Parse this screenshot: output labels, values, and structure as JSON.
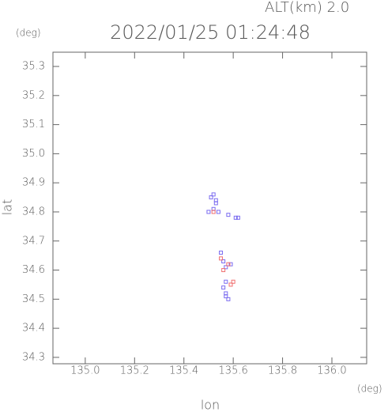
{
  "chart_data": {
    "type": "scatter",
    "title": "2022/01/25 01:24:48",
    "subtitle": "ALT(km) 2.0",
    "y_unit": "(deg)",
    "x_unit": "(deg)",
    "x_label": "lon",
    "y_label": "lat",
    "xlim": [
      134.869,
      136.141
    ],
    "ylim": [
      34.278,
      35.349
    ],
    "xticks": [
      {
        "value": 135,
        "label": "135.0"
      },
      135.2,
      135.4,
      135.6,
      135.8,
      {
        "value": 136,
        "label": "136.0"
      }
    ],
    "yticks": [
      34.3,
      34.4,
      34.5,
      34.6,
      34.7,
      34.8,
      34.9,
      {
        "value": 35,
        "label": "35.0"
      },
      35.1,
      35.2,
      35.3
    ],
    "series": [
      {
        "color": "#7b6cf0",
        "x": [
          135.52,
          135.51,
          135.53,
          135.52,
          135.5,
          135.54,
          135.58,
          135.61,
          135.55,
          135.56,
          135.57,
          135.59,
          135.57,
          135.56,
          135.57,
          135.58,
          135.57,
          135.53,
          135.62
        ],
        "y": [
          34.86,
          34.85,
          34.83,
          34.81,
          34.8,
          34.8,
          34.79,
          34.78,
          34.66,
          34.63,
          34.61,
          34.62,
          34.56,
          34.54,
          34.52,
          34.5,
          34.51,
          34.84,
          34.78
        ]
      },
      {
        "color": "#f07070",
        "x": [
          135.55,
          135.58,
          135.6,
          135.59,
          135.56,
          135.52
        ],
        "y": [
          34.64,
          34.62,
          34.56,
          34.55,
          34.6,
          34.8
        ]
      }
    ]
  }
}
